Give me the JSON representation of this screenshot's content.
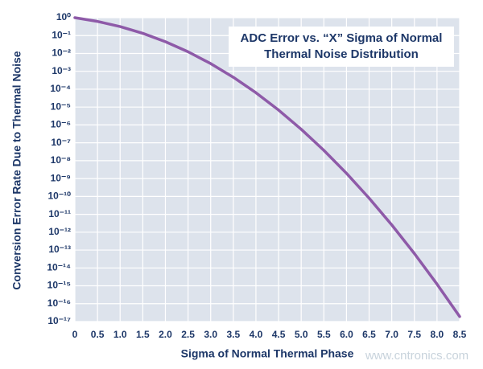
{
  "chart_data": {
    "type": "line",
    "title": [
      "ADC Error vs. “X” Sigma of Normal",
      "Thermal Noise Distribution"
    ],
    "x_label": "Sigma of Normal Thermal Phase",
    "y_label": "Conversion Error Rate Due to Thermal Noise",
    "watermark": "www.cntronics.com",
    "x": [
      0,
      0.5,
      1,
      1.5,
      2,
      2.5,
      3,
      3.5,
      4,
      4.5,
      5,
      5.5,
      6,
      6.5,
      7,
      7.5,
      8,
      8.5
    ],
    "values": [
      1,
      0.617,
      0.3173,
      0.1336,
      0.0455,
      0.01242,
      0.0027,
      0.000465,
      6.33e-05,
      6.8e-06,
      5.73e-07,
      3.8e-08,
      1.97e-09,
      8e-11,
      2.56e-12,
      6.4e-14,
      1.24e-15,
      1.9e-17
    ],
    "color": "#8e5aa8",
    "xlim": [
      0,
      8.5
    ],
    "xticks": [
      0,
      0.5,
      {
        "value": 1,
        "label": "1.0"
      },
      1.5,
      {
        "value": 2,
        "label": "2.0"
      },
      2.5,
      {
        "value": 3,
        "label": "3.0"
      },
      3.5,
      {
        "value": 4,
        "label": "4.0"
      },
      4.5,
      {
        "value": 5,
        "label": "5.0"
      },
      5.5,
      {
        "value": 6,
        "label": "6.0"
      },
      6.5,
      {
        "value": 7,
        "label": "7.0"
      },
      7.5,
      {
        "value": 8,
        "label": "8.0"
      },
      8.5
    ],
    "ylim": [
      1e-17,
      1
    ],
    "log_y": true,
    "yticks": [
      {
        "value": 1,
        "label": "10⁰"
      },
      {
        "value": 0.1,
        "label": "10⁻¹"
      },
      {
        "value": 0.01,
        "label": "10⁻²"
      },
      {
        "value": 0.001,
        "label": "10⁻³"
      },
      {
        "value": 0.0001,
        "label": "10⁻⁴"
      },
      {
        "value": 1e-05,
        "label": "10⁻⁵"
      },
      {
        "value": 1e-06,
        "label": "10⁻⁶"
      },
      {
        "value": 1e-07,
        "label": "10⁻⁷"
      },
      {
        "value": 1e-08,
        "label": "10⁻⁸"
      },
      {
        "value": 1e-09,
        "label": "10⁻⁹"
      },
      {
        "value": 1e-10,
        "label": "10⁻¹⁰"
      },
      {
        "value": 1e-11,
        "label": "10⁻¹¹"
      },
      {
        "value": 1e-12,
        "label": "10⁻¹²"
      },
      {
        "value": 1e-13,
        "label": "10⁻¹³"
      },
      {
        "value": 1e-14,
        "label": "10⁻¹⁴"
      },
      {
        "value": 1e-15,
        "label": "10⁻¹⁵"
      },
      {
        "value": 1e-16,
        "label": "10⁻¹⁶"
      },
      {
        "value": 1e-17,
        "label": "10⁻¹⁷"
      }
    ],
    "grid": true
  }
}
